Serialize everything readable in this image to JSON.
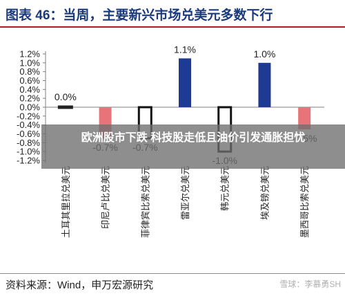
{
  "title": "图表 46：当周，主要新兴市场兑美元多数下行",
  "source": "资料来源：Wind，申万宏源研究",
  "watermark": "雪球：李慕勇SH",
  "overlay_caption": "欧洲股市下跌 科技股走低且油价引发通胀担忧",
  "colors": {
    "positive": "#1f3a93",
    "negative": "#e8747a",
    "title": "#1a3a7c",
    "rule": "#b71c1c"
  },
  "chart_data": {
    "type": "bar",
    "categories": [
      "土耳其里拉兑美元",
      "印尼卢比兑美元",
      "菲律宾比索兑美元",
      "雷亚尔兑美元",
      "韩元兑美元",
      "埃及镑兑美元",
      "墨西哥比索兑美元"
    ],
    "values": [
      0.0,
      -0.7,
      -0.7,
      1.1,
      -1.0,
      1.0,
      -0.5
    ],
    "data_labels": [
      "0.0%",
      "-0.7%",
      "-0.7%",
      "1.1%",
      "-1.0%",
      "1.0%",
      "-0.5%"
    ],
    "bar_styles": [
      "dark",
      "negative",
      "outline",
      "positive",
      "outline",
      "positive",
      "negative"
    ],
    "y_ticks": [
      "1.2%",
      "1.0%",
      "0.8%",
      "0.6%",
      "0.4%",
      "0.2%",
      "0.0%",
      "-0.2%",
      "-0.4%",
      "-0.6%",
      "-0.8%",
      "-1.0%",
      "-1.2%"
    ],
    "tick_values": [
      1.2,
      1.0,
      0.8,
      0.6,
      0.4,
      0.2,
      0.0,
      -0.2,
      -0.4,
      -0.6,
      -0.8,
      -1.0,
      -1.2
    ],
    "ylim": [
      -1.2,
      1.2
    ],
    "grid": false
  }
}
